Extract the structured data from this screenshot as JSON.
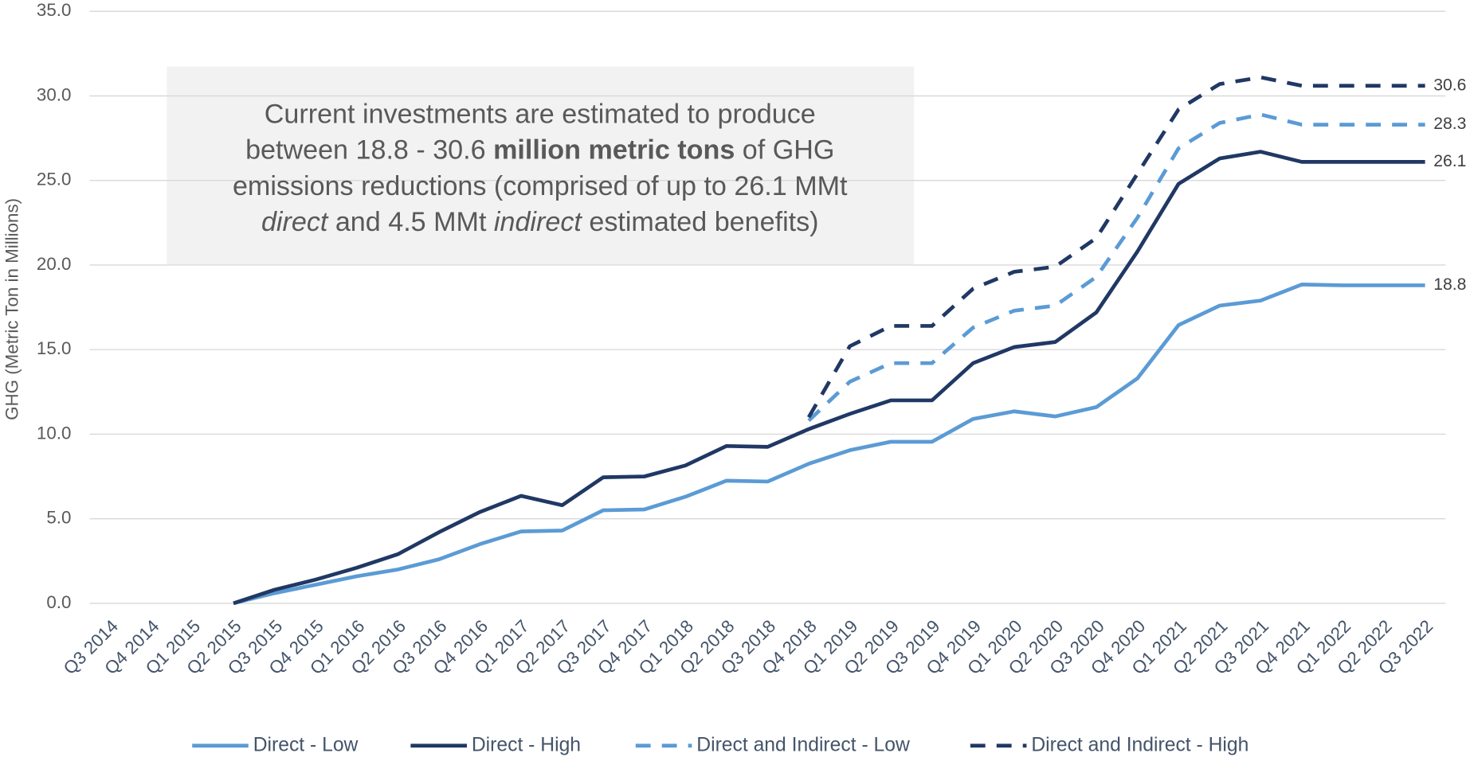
{
  "chart_data": {
    "type": "line",
    "y_label": "GHG (Metric Ton in Millions)",
    "categories": [
      "Q3 2014",
      "Q4 2014",
      "Q1 2015",
      "Q2 2015",
      "Q3 2015",
      "Q4 2015",
      "Q1 2016",
      "Q2 2016",
      "Q3 2016",
      "Q4 2016",
      "Q1 2017",
      "Q2 2017",
      "Q3 2017",
      "Q4 2017",
      "Q1 2018",
      "Q2 2018",
      "Q3 2018",
      "Q4 2018",
      "Q1 2019",
      "Q2 2019",
      "Q3 2019",
      "Q4 2019",
      "Q1 2020",
      "Q2 2020",
      "Q3 2020",
      "Q4 2020",
      "Q1 2021",
      "Q2 2021",
      "Q3 2021",
      "Q4 2021",
      "Q1 2022",
      "Q2 2022",
      "Q3 2022"
    ],
    "ylim": [
      0,
      35
    ],
    "yticks": [
      {
        "value": 0,
        "label": "0.0"
      },
      {
        "value": 5,
        "label": "5.0"
      },
      {
        "value": 10,
        "label": "10.0"
      },
      {
        "value": 15,
        "label": "15.0"
      },
      {
        "value": 20,
        "label": "20.0"
      },
      {
        "value": 25,
        "label": "25.0"
      },
      {
        "value": 30,
        "label": "30.0"
      },
      {
        "value": 35,
        "label": "35.0"
      }
    ],
    "grid": true,
    "legend": "bottom",
    "label_last": true,
    "series": [
      {
        "name": "Direct - Low",
        "color": "#5b9bd5",
        "dash": false,
        "values": [
          null,
          null,
          null,
          0,
          0.6,
          1.1,
          1.6,
          2.0,
          2.6,
          3.5,
          4.25,
          4.3,
          5.5,
          5.55,
          6.3,
          7.25,
          7.2,
          8.25,
          9.05,
          9.55,
          9.55,
          10.9,
          11.35,
          11.05,
          11.6,
          13.3,
          16.45,
          17.6,
          17.9,
          18.85,
          18.8,
          18.8,
          18.8
        ]
      },
      {
        "name": "Direct - High",
        "color": "#203864",
        "dash": false,
        "values": [
          null,
          null,
          null,
          0,
          0.8,
          1.4,
          2.1,
          2.9,
          4.2,
          5.4,
          6.35,
          5.8,
          7.45,
          7.5,
          8.15,
          9.3,
          9.25,
          10.3,
          11.2,
          12.0,
          12.0,
          14.2,
          15.15,
          15.45,
          17.2,
          20.8,
          24.8,
          26.3,
          26.7,
          26.1,
          26.1,
          26.1,
          26.1
        ]
      },
      {
        "name": "Direct and Indirect - Low",
        "color": "#5b9bd5",
        "dash": true,
        "values": [
          null,
          null,
          null,
          null,
          null,
          null,
          null,
          null,
          null,
          null,
          null,
          null,
          null,
          null,
          null,
          null,
          null,
          10.8,
          13.1,
          14.2,
          14.2,
          16.3,
          17.3,
          17.6,
          19.3,
          22.8,
          26.9,
          28.4,
          28.9,
          28.3,
          28.3,
          28.3,
          28.3
        ]
      },
      {
        "name": "Direct and Indirect - High",
        "color": "#203864",
        "dash": true,
        "values": [
          null,
          null,
          null,
          null,
          null,
          null,
          null,
          null,
          null,
          null,
          null,
          null,
          null,
          null,
          null,
          null,
          null,
          11.0,
          15.2,
          16.4,
          16.4,
          18.6,
          19.6,
          19.9,
          21.6,
          25.4,
          29.2,
          30.7,
          31.1,
          30.6,
          30.6,
          30.6,
          30.6
        ]
      }
    ],
    "annotation": [
      [
        {
          "text": "Current investments are estimated to produce",
          "style": "normal"
        }
      ],
      [
        {
          "text": "between 18.8 - 30.6 ",
          "style": "normal"
        },
        {
          "text": "million metric tons",
          "style": "bold"
        },
        {
          "text": " of GHG",
          "style": "normal"
        }
      ],
      [
        {
          "text": "emissions reductions (comprised of up to 26.1 MMt",
          "style": "normal"
        }
      ],
      [
        {
          "text": "direct",
          "style": "italic"
        },
        {
          "text": " and 4.5 MMt ",
          "style": "normal"
        },
        {
          "text": "indirect",
          "style": "italic"
        },
        {
          "text": " estimated benefits)",
          "style": "normal"
        }
      ]
    ]
  }
}
